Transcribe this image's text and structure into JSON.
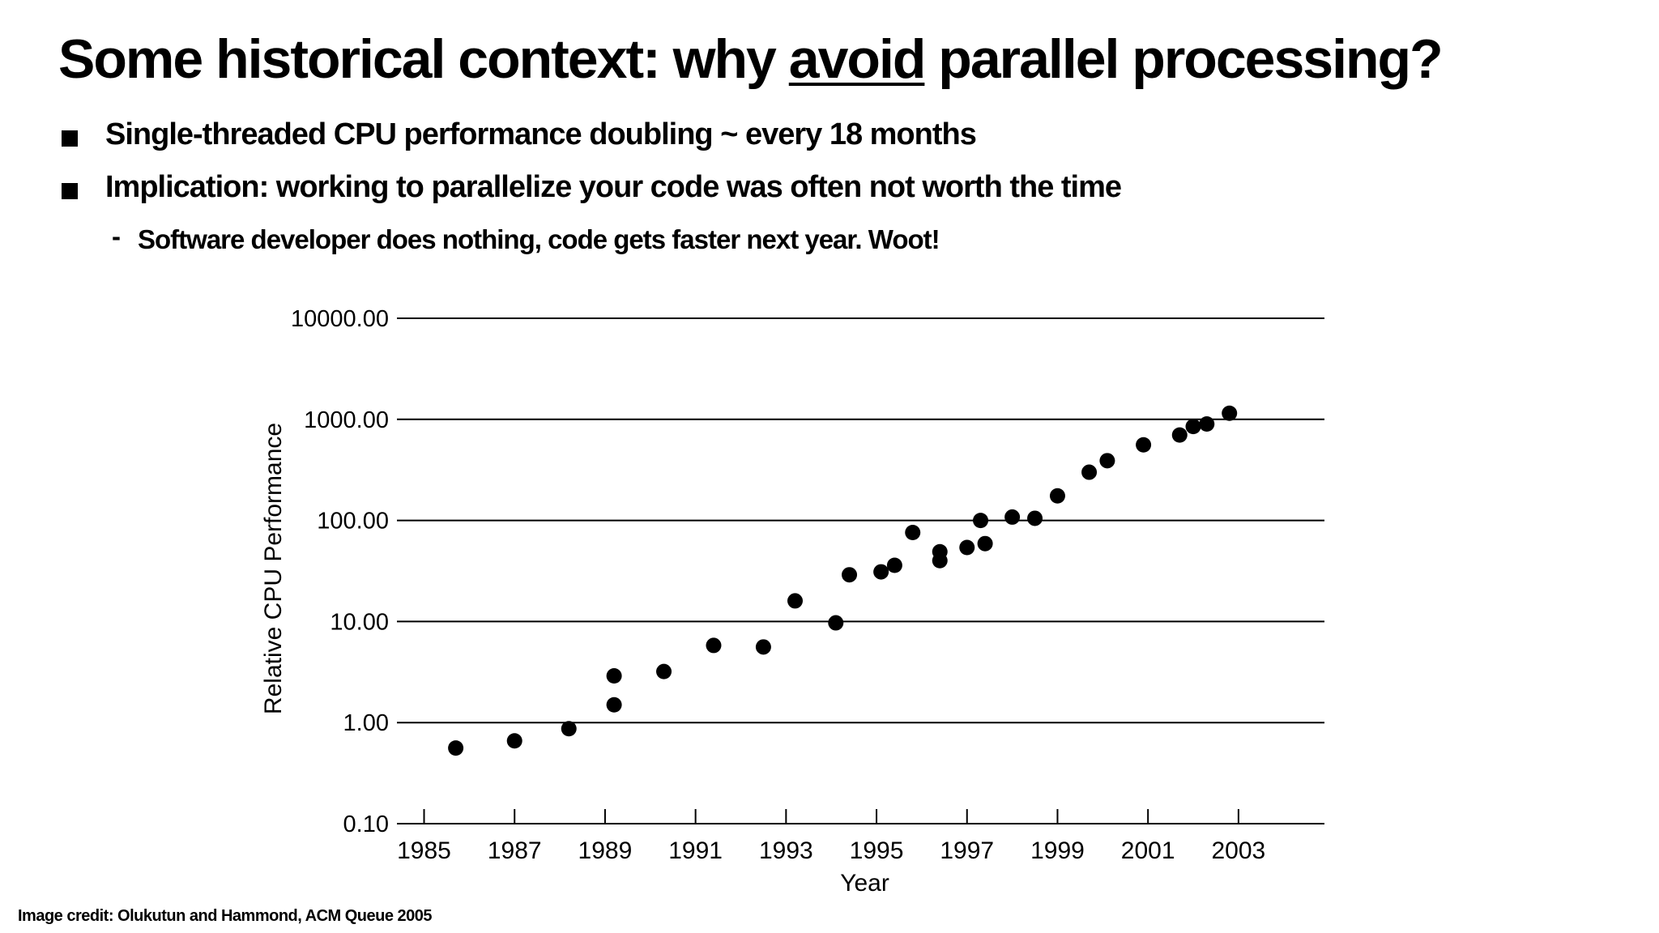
{
  "slide": {
    "title_before": "Some historical context: why ",
    "title_emphasis": "avoid",
    "title_after": " parallel processing?",
    "bullets": [
      "Single-threaded CPU performance doubling ~ every 18 months",
      "Implication: working to parallelize your code was often not worth the time"
    ],
    "sub_bullet_marker": "-",
    "sub_bullet": "Software developer does nothing, code gets faster next year. Woot!",
    "credit": "Image credit: Olukutun and Hammond, ACM Queue 2005"
  },
  "chart_data": {
    "type": "scatter",
    "xlabel": "Year",
    "ylabel": "Relative CPU Performance",
    "y_scale": "log",
    "ylim": [
      0.1,
      10000
    ],
    "xlim": [
      1984.4,
      2004.9
    ],
    "x_ticks": [
      1985,
      1987,
      1989,
      1991,
      1993,
      1995,
      1997,
      1999,
      2001,
      2003
    ],
    "y_ticks": [
      {
        "value": 0.1,
        "label": "0.10"
      },
      {
        "value": 1,
        "label": "1.00"
      },
      {
        "value": 10,
        "label": "10.00"
      },
      {
        "value": 100,
        "label": "100.00"
      },
      {
        "value": 1000,
        "label": "1000.00"
      },
      {
        "value": 10000,
        "label": "10000.00"
      }
    ],
    "grid": "horizontal",
    "legend": "none",
    "marker_color": "#000000",
    "points": [
      {
        "x": 1985.7,
        "y": 0.56
      },
      {
        "x": 1987.0,
        "y": 0.66
      },
      {
        "x": 1988.2,
        "y": 0.87
      },
      {
        "x": 1989.2,
        "y": 1.5
      },
      {
        "x": 1989.2,
        "y": 2.9
      },
      {
        "x": 1990.3,
        "y": 3.2
      },
      {
        "x": 1991.4,
        "y": 5.8
      },
      {
        "x": 1992.5,
        "y": 5.6
      },
      {
        "x": 1993.2,
        "y": 16
      },
      {
        "x": 1994.1,
        "y": 9.7
      },
      {
        "x": 1994.4,
        "y": 29
      },
      {
        "x": 1995.1,
        "y": 31
      },
      {
        "x": 1995.4,
        "y": 36
      },
      {
        "x": 1995.8,
        "y": 76
      },
      {
        "x": 1996.4,
        "y": 40
      },
      {
        "x": 1996.4,
        "y": 49
      },
      {
        "x": 1997.0,
        "y": 54
      },
      {
        "x": 1997.3,
        "y": 100
      },
      {
        "x": 1997.4,
        "y": 59
      },
      {
        "x": 1998.0,
        "y": 108
      },
      {
        "x": 1998.5,
        "y": 105
      },
      {
        "x": 1999.0,
        "y": 175
      },
      {
        "x": 1999.7,
        "y": 300
      },
      {
        "x": 2000.1,
        "y": 390
      },
      {
        "x": 2000.9,
        "y": 560
      },
      {
        "x": 2001.7,
        "y": 700
      },
      {
        "x": 2002.0,
        "y": 850
      },
      {
        "x": 2002.3,
        "y": 900
      },
      {
        "x": 2002.8,
        "y": 1150
      }
    ]
  }
}
